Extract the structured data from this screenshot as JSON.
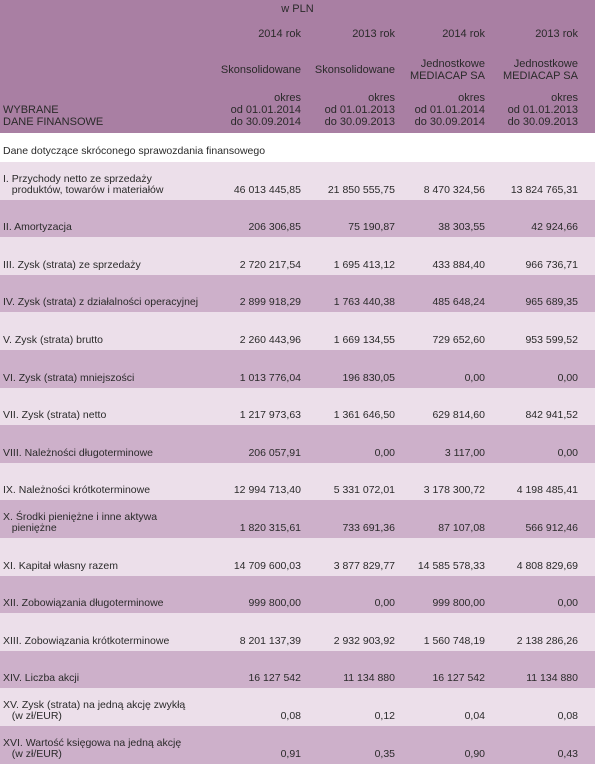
{
  "unit": "w PLN",
  "header_label_lines": [
    "WYBRANE",
    "DANE FINANSOWE"
  ],
  "columns": [
    {
      "year": "2014 rok",
      "type_lines": [
        "Skonsolidowane"
      ],
      "period_lines": [
        "okres",
        "od 01.01.2014",
        "do 30.09.2014"
      ]
    },
    {
      "year": "2013 rok",
      "type_lines": [
        "Skonsolidowane"
      ],
      "period_lines": [
        "okres",
        "od 01.01.2013",
        "do 30.09.2013"
      ]
    },
    {
      "year": "2014 rok",
      "type_lines": [
        "Jednostkowe",
        "MEDIACAP SA"
      ],
      "period_lines": [
        "okres",
        "od 01.01.2014",
        "do 30.09.2014"
      ]
    },
    {
      "year": "2013 rok",
      "type_lines": [
        "Jednostkowe",
        "MEDIACAP SA"
      ],
      "period_lines": [
        "okres",
        "od 01.01.2013",
        "do 30.09.2013"
      ]
    }
  ],
  "section_title": "Dane dotyczące skróconego sprawozdania finansowego",
  "rows": [
    {
      "label_lines": [
        "I. Przychody netto ze sprzedaży",
        "   produktów, towarów i materiałów"
      ],
      "values": [
        "46 013 445,85",
        "21 850 555,75",
        "8 470 324,56",
        "13 824 765,31"
      ]
    },
    {
      "label_lines": [
        "II. Amortyzacja"
      ],
      "values": [
        "206 306,85",
        "75 190,87",
        "38 303,55",
        "42 924,66"
      ]
    },
    {
      "label_lines": [
        "III. Zysk (strata) ze sprzedaży"
      ],
      "values": [
        "2 720 217,54",
        "1 695 413,12",
        "433 884,40",
        "966 736,71"
      ]
    },
    {
      "label_lines": [
        "IV. Zysk (strata) z działalności operacyjnej"
      ],
      "values": [
        "2 899 918,29",
        "1 763 440,38",
        "485 648,24",
        "965 689,35"
      ]
    },
    {
      "label_lines": [
        "V. Zysk (strata) brutto"
      ],
      "values": [
        "2 260 443,96",
        "1 669 134,55",
        "729 652,60",
        "953 599,52"
      ]
    },
    {
      "label_lines": [
        "VI. Zysk (strata) mniejszości"
      ],
      "values": [
        "1 013 776,04",
        "196 830,05",
        "0,00",
        "0,00"
      ]
    },
    {
      "label_lines": [
        "VII. Zysk (strata) netto"
      ],
      "values": [
        "1 217 973,63",
        "1 361 646,50",
        "629 814,60",
        "842 941,52"
      ]
    },
    {
      "label_lines": [
        "VIII. Należności długoterminowe"
      ],
      "values": [
        "206 057,91",
        "0,00",
        "3 117,00",
        "0,00"
      ]
    },
    {
      "label_lines": [
        "IX. Należności krótkoterminowe"
      ],
      "values": [
        "12 994 713,40",
        "5 331 072,01",
        "3 178 300,72",
        "4 198 485,41"
      ]
    },
    {
      "label_lines": [
        "X. Środki pieniężne i inne aktywa",
        "   pieniężne"
      ],
      "values": [
        "1 820 315,61",
        "733 691,36",
        "87 107,08",
        "566 912,46"
      ]
    },
    {
      "label_lines": [
        "XI. Kapitał własny razem"
      ],
      "values": [
        "14 709 600,03",
        "3 877 829,77",
        "14 585 578,33",
        "4 808 829,69"
      ]
    },
    {
      "label_lines": [
        "XII. Zobowiązania długoterminowe"
      ],
      "values": [
        "999 800,00",
        "0,00",
        "999 800,00",
        "0,00"
      ]
    },
    {
      "label_lines": [
        "XIII. Zobowiązania krótkoterminowe"
      ],
      "values": [
        "8 201 137,39",
        "2 932 903,92",
        "1 560 748,19",
        "2 138 286,26"
      ]
    },
    {
      "label_lines": [
        "XIV. Liczba akcji"
      ],
      "values": [
        "16 127 542",
        "11 134 880",
        "16 127 542",
        "11 134 880"
      ]
    },
    {
      "label_lines": [
        "XV. Zysk (strata) na jedną akcję zwykłą",
        "   (w zł/EUR)"
      ],
      "values": [
        "0,08",
        "0,12",
        "0,04",
        "0,08"
      ]
    },
    {
      "label_lines": [
        "XVI. Wartość księgowa na jedną akcję",
        "   (w zł/EUR)"
      ],
      "values": [
        "0,91",
        "0,35",
        "0,90",
        "0,43"
      ]
    }
  ]
}
